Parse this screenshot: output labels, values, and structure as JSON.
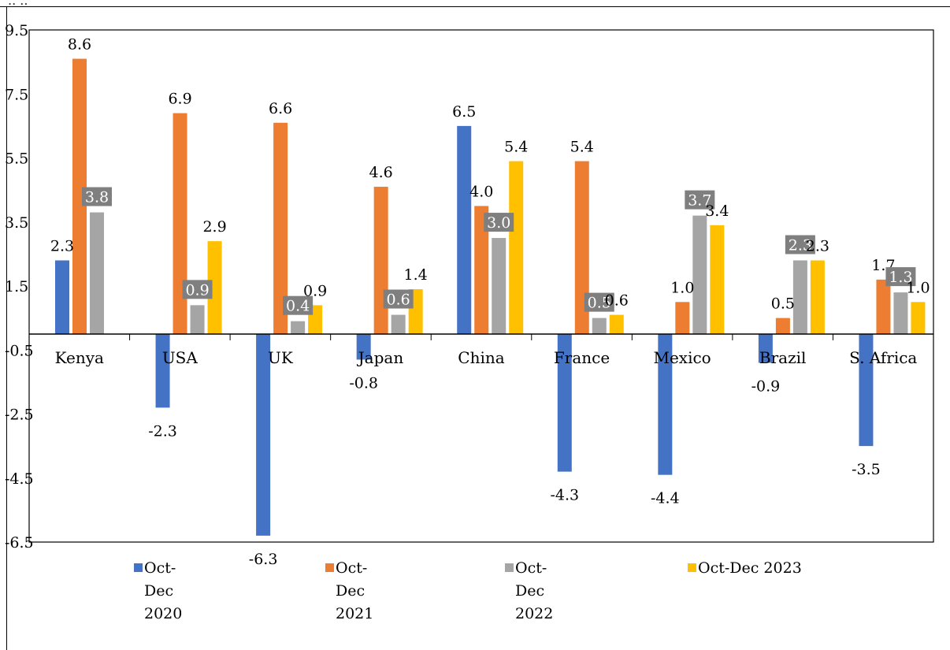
{
  "clipped_header_text": "..  ..",
  "chart_data": {
    "type": "bar",
    "title": "",
    "xlabel": "",
    "ylabel": "",
    "ylim": [
      -6.5,
      9.5
    ],
    "y_ticks": [
      "9.5",
      "7.5",
      "5.5",
      "3.5",
      "1.5",
      "-0.5",
      "-2.5",
      "-4.5",
      "-6.5"
    ],
    "y_tick_values": [
      9.5,
      7.5,
      5.5,
      3.5,
      1.5,
      -0.5,
      -2.5,
      -4.5,
      -6.5
    ],
    "categories": [
      "Kenya",
      "USA",
      "UK",
      "Japan",
      "China",
      "France",
      "Mexico",
      "Brazil",
      "S. Africa"
    ],
    "legend_position": "bottom",
    "grid": false,
    "series": [
      {
        "name": "Oct-Dec 2020",
        "legend_lines": [
          "Oct-",
          "Dec",
          "2020"
        ],
        "color": "#4472C4",
        "values": [
          2.3,
          -2.3,
          -6.3,
          -0.8,
          6.5,
          -4.3,
          -4.4,
          -0.9,
          -3.5
        ],
        "labels": [
          "2.3",
          "-2.3",
          "-6.3",
          "-0.8",
          "6.5",
          "-4.3",
          "-4.4",
          "-0.9",
          "-3.5"
        ]
      },
      {
        "name": "Oct-Dec 2021",
        "legend_lines": [
          "Oct-",
          "Dec",
          "2021"
        ],
        "color": "#ED7D31",
        "values": [
          8.6,
          6.9,
          6.6,
          4.6,
          4.0,
          5.4,
          1.0,
          0.5,
          1.7
        ],
        "labels": [
          "8.6",
          "6.9",
          "6.6",
          "4.6",
          "4.0",
          "5.4",
          "1.0",
          "0.5",
          "1.7"
        ]
      },
      {
        "name": "Oct-Dec 2022",
        "legend_lines": [
          "Oct-",
          "Dec",
          "2022"
        ],
        "color": "#A5A5A5",
        "values": [
          3.8,
          0.9,
          0.4,
          0.6,
          3.0,
          0.5,
          3.7,
          2.3,
          1.3
        ],
        "labels": [
          "3.8",
          "0.9",
          "0.4",
          "0.6",
          "3.0",
          "0.5",
          "3.7",
          "2.3",
          "1.3"
        ]
      },
      {
        "name": "Oct-Dec 2023",
        "legend_lines": [
          "Oct-Dec 2023"
        ],
        "color": "#FFC000",
        "values": [
          null,
          2.9,
          0.9,
          1.4,
          5.4,
          0.6,
          3.4,
          2.3,
          1.0
        ],
        "labels": [
          null,
          "2.9",
          "0.9",
          "1.4",
          "5.4",
          "0.6",
          "3.4",
          "2.3",
          "1.0"
        ]
      }
    ]
  }
}
